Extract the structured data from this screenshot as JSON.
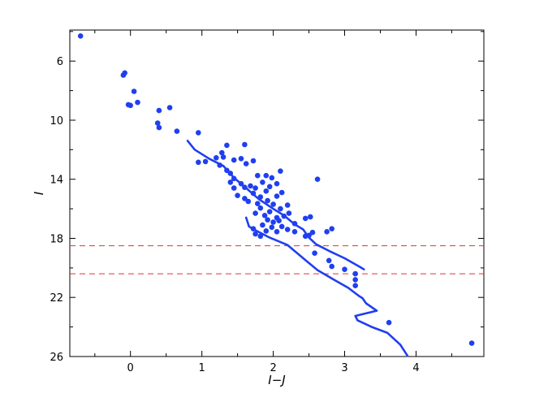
{
  "chart_data": {
    "type": "scatter",
    "title": "",
    "xlabel": "I−J",
    "ylabel": "I",
    "xlim": [
      -0.85,
      4.95
    ],
    "ylim": [
      26,
      3.9
    ],
    "y_inverted": true,
    "grid": false,
    "legend": "none",
    "colors": {
      "points": "#1f3ff0",
      "lines": "#1f3ff0",
      "reference_lines": "#e83030"
    },
    "x_ticks": [
      "0",
      "1",
      "2",
      "3",
      "4"
    ],
    "x_tick_values": [
      0,
      1,
      2,
      3,
      4
    ],
    "y_ticks": [
      "6",
      "10",
      "14",
      "18",
      "22",
      "26"
    ],
    "y_tick_values": [
      6,
      10,
      14,
      18,
      22,
      26
    ],
    "series": [
      {
        "kind": "points",
        "points": [
          [
            -0.7,
            4.3
          ],
          [
            -0.1,
            6.95
          ],
          [
            -0.08,
            6.8
          ],
          [
            0.05,
            8.05
          ],
          [
            0.1,
            8.8
          ],
          [
            -0.03,
            8.95
          ],
          [
            0.0,
            9.0
          ],
          [
            0.4,
            9.35
          ],
          [
            0.55,
            9.15
          ],
          [
            0.38,
            10.2
          ],
          [
            0.4,
            10.5
          ],
          [
            0.65,
            10.75
          ],
          [
            0.95,
            10.85
          ],
          [
            0.95,
            12.85
          ],
          [
            1.05,
            12.8
          ],
          [
            1.2,
            12.55
          ],
          [
            1.28,
            12.2
          ],
          [
            1.3,
            12.5
          ],
          [
            1.35,
            11.7
          ],
          [
            1.45,
            12.7
          ],
          [
            1.6,
            11.65
          ],
          [
            1.55,
            12.6
          ],
          [
            1.62,
            12.95
          ],
          [
            1.72,
            12.75
          ],
          [
            1.25,
            13.05
          ],
          [
            1.35,
            13.4
          ],
          [
            1.4,
            13.6
          ],
          [
            1.45,
            13.95
          ],
          [
            1.55,
            14.3
          ],
          [
            1.4,
            14.2
          ],
          [
            1.45,
            14.6
          ],
          [
            1.5,
            15.1
          ],
          [
            1.6,
            14.55
          ],
          [
            1.68,
            14.45
          ],
          [
            1.75,
            14.6
          ],
          [
            1.72,
            14.95
          ],
          [
            1.6,
            15.3
          ],
          [
            1.65,
            15.5
          ],
          [
            1.78,
            15.65
          ],
          [
            1.82,
            15.2
          ],
          [
            1.9,
            14.8
          ],
          [
            1.95,
            14.5
          ],
          [
            1.85,
            14.2
          ],
          [
            1.9,
            13.75
          ],
          [
            1.98,
            13.9
          ],
          [
            2.05,
            14.3
          ],
          [
            1.92,
            15.45
          ],
          [
            2.05,
            15.15
          ],
          [
            2.12,
            14.9
          ],
          [
            2.0,
            15.7
          ],
          [
            1.82,
            15.95
          ],
          [
            1.75,
            16.3
          ],
          [
            1.88,
            16.45
          ],
          [
            1.95,
            16.2
          ],
          [
            2.05,
            16.6
          ],
          [
            2.0,
            16.9
          ],
          [
            2.08,
            16.8
          ],
          [
            2.15,
            16.5
          ],
          [
            2.22,
            16.3
          ],
          [
            2.1,
            16.0
          ],
          [
            2.2,
            15.75
          ],
          [
            1.85,
            17.1
          ],
          [
            1.98,
            17.25
          ],
          [
            2.12,
            17.2
          ],
          [
            2.2,
            17.4
          ],
          [
            2.3,
            17.0
          ],
          [
            1.9,
            17.5
          ],
          [
            2.05,
            17.55
          ],
          [
            2.3,
            17.55
          ],
          [
            2.45,
            17.85
          ],
          [
            2.5,
            17.8
          ],
          [
            2.55,
            17.6
          ],
          [
            1.75,
            17.7
          ],
          [
            1.82,
            17.85
          ],
          [
            1.72,
            17.35
          ],
          [
            1.92,
            16.75
          ],
          [
            2.45,
            16.65
          ],
          [
            2.52,
            16.55
          ],
          [
            2.1,
            13.45
          ],
          [
            2.62,
            14.0
          ],
          [
            1.78,
            13.75
          ],
          [
            2.75,
            17.55
          ],
          [
            2.82,
            17.35
          ],
          [
            2.58,
            19.0
          ],
          [
            2.78,
            19.5
          ],
          [
            2.82,
            19.9
          ],
          [
            3.0,
            20.1
          ],
          [
            3.15,
            20.4
          ],
          [
            3.15,
            20.8
          ],
          [
            3.15,
            21.2
          ],
          [
            3.62,
            23.7
          ],
          [
            4.78,
            25.1
          ]
        ]
      },
      {
        "kind": "line",
        "points": [
          [
            0.8,
            11.4
          ],
          [
            0.9,
            12.0
          ],
          [
            1.1,
            12.6
          ],
          [
            1.3,
            13.1
          ],
          [
            1.45,
            13.9
          ],
          [
            1.62,
            14.6
          ],
          [
            1.8,
            15.35
          ],
          [
            2.0,
            16.0
          ],
          [
            2.15,
            16.45
          ],
          [
            2.3,
            17.05
          ],
          [
            2.42,
            17.4
          ],
          [
            2.5,
            17.95
          ],
          [
            2.6,
            18.4
          ],
          [
            2.78,
            18.85
          ],
          [
            3.0,
            19.35
          ],
          [
            3.22,
            19.95
          ],
          [
            3.27,
            20.1
          ]
        ]
      },
      {
        "kind": "line",
        "points": [
          [
            1.62,
            16.6
          ],
          [
            1.66,
            17.2
          ],
          [
            1.75,
            17.45
          ],
          [
            1.95,
            17.95
          ],
          [
            2.2,
            18.45
          ],
          [
            2.42,
            19.35
          ],
          [
            2.62,
            20.15
          ],
          [
            2.85,
            20.8
          ],
          [
            3.05,
            21.35
          ],
          [
            3.2,
            21.9
          ],
          [
            3.25,
            22.05
          ],
          [
            3.3,
            22.4
          ],
          [
            3.45,
            22.9
          ],
          [
            3.15,
            23.25
          ],
          [
            3.18,
            23.55
          ],
          [
            3.38,
            24.0
          ],
          [
            3.6,
            24.4
          ],
          [
            3.78,
            25.2
          ],
          [
            3.88,
            25.95
          ]
        ]
      },
      {
        "kind": "hline",
        "y": 18.5,
        "style": "dashed"
      },
      {
        "kind": "hline",
        "y": 20.4,
        "style": "dashed"
      }
    ]
  }
}
